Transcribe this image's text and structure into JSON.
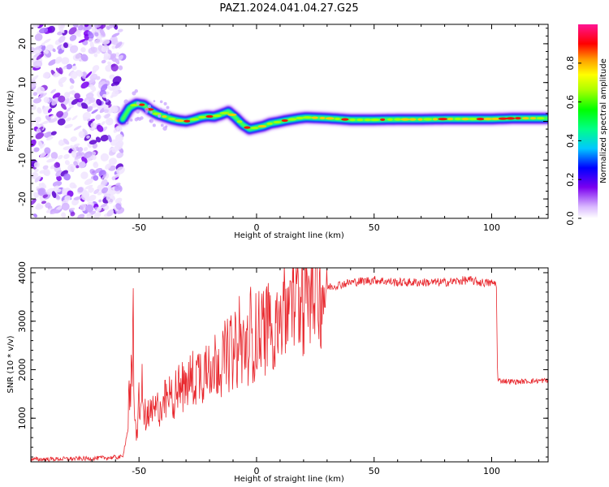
{
  "title": "PAZ1.2024.041.04.27.G25",
  "spectrogram": {
    "chart_data": {
      "type": "heatmap",
      "xlabel": "Height of straight line (km)",
      "ylabel": "Frequency (Hz)",
      "xlim": [
        -96,
        124
      ],
      "ylim": [
        -25,
        25
      ],
      "x_ticks": [
        -50,
        0,
        50,
        100
      ],
      "y_ticks": [
        -20,
        -10,
        0,
        10,
        20
      ],
      "noise_region_x": [
        -96,
        -57
      ],
      "trace": {
        "x": [
          -57,
          -54,
          -51,
          -48,
          -45,
          -42,
          -39,
          -36,
          -33,
          -30,
          -27,
          -24,
          -21,
          -18,
          -15,
          -12,
          -9,
          -6,
          -3,
          0,
          3,
          6,
          9,
          12,
          15,
          18,
          21,
          30,
          40,
          50,
          60,
          70,
          80,
          90,
          100,
          110,
          124
        ],
        "y": [
          0.5,
          3.5,
          4.5,
          4.2,
          2.8,
          1.8,
          1.2,
          0.6,
          0.2,
          0.0,
          0.4,
          1.0,
          1.3,
          1.2,
          1.8,
          2.5,
          1.0,
          -0.8,
          -2.0,
          -1.6,
          -1.2,
          -0.5,
          -0.2,
          0.2,
          0.5,
          0.8,
          1.0,
          0.8,
          0.4,
          0.4,
          0.5,
          0.5,
          0.6,
          0.6,
          0.6,
          0.8,
          0.8
        ]
      },
      "colorbar": {
        "label": "Normalized spectral amplitude",
        "ticks": [
          0.0,
          0.2,
          0.4,
          0.6,
          0.8
        ],
        "range": [
          0,
          1
        ]
      }
    }
  },
  "snr": {
    "chart_data": {
      "type": "line",
      "xlabel": "Height of straight line (km)",
      "ylabel": "SNR (10 * v/v)",
      "xlim": [
        -96,
        124
      ],
      "ylim": [
        100,
        4100
      ],
      "x_ticks": [
        -50,
        0,
        50,
        100
      ],
      "y_ticks": [
        1000,
        2000,
        3000,
        4000
      ],
      "line_color": "#e8262c",
      "profile": {
        "x": [
          -96,
          -70,
          -57,
          -55,
          -54,
          -53,
          -52.5,
          -52,
          -51,
          -50,
          -48,
          -46,
          -44,
          -40,
          -35,
          -30,
          -25,
          -20,
          -15,
          -10,
          -5,
          0,
          5,
          10,
          15,
          20,
          25,
          30,
          40,
          50,
          60,
          70,
          80,
          90,
          95,
          102,
          102.5,
          110,
          124
        ],
        "y": [
          150,
          170,
          200,
          700,
          1300,
          2000,
          3150,
          900,
          600,
          1400,
          1100,
          1000,
          1100,
          1300,
          1500,
          1700,
          1900,
          2100,
          2200,
          2350,
          2500,
          2700,
          2900,
          3100,
          3300,
          3500,
          3650,
          3700,
          3800,
          3850,
          3800,
          3800,
          3800,
          3850,
          3800,
          3780,
          1780,
          1750,
          1780
        ]
      }
    }
  }
}
